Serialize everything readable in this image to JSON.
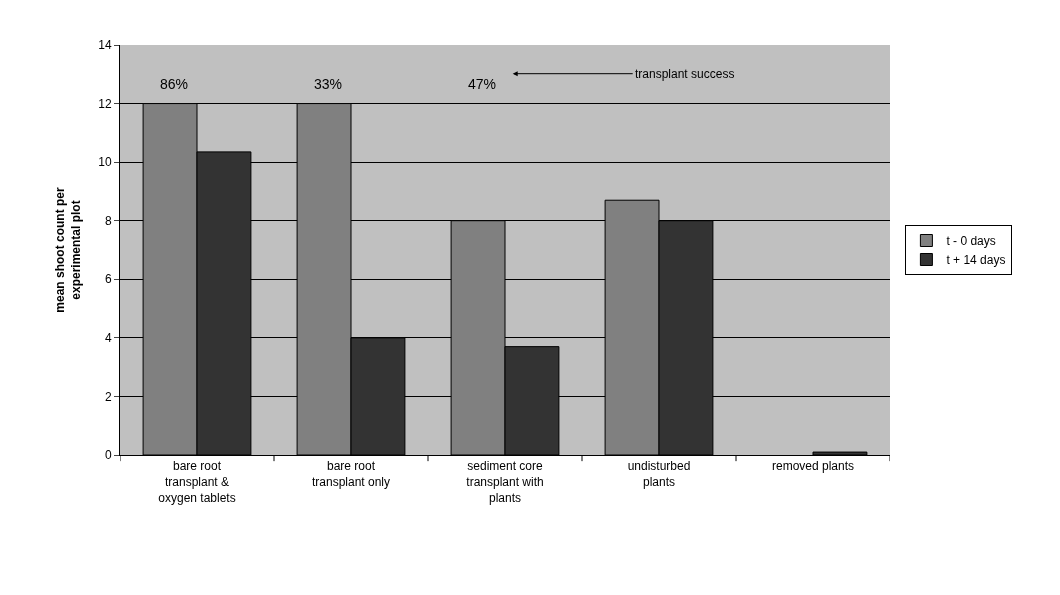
{
  "chart_data": {
    "type": "bar",
    "ylabel": "mean shoot count per experimental plot",
    "categories": [
      "bare root transplant & oxygen tablets",
      "bare root transplant only",
      "sediment core transplant with plants",
      "undisturbed plants",
      "removed plants"
    ],
    "series": [
      {
        "name": "t - 0 days",
        "color": "#808080",
        "values": [
          12,
          12,
          8,
          8.7,
          0
        ]
      },
      {
        "name": "t + 14 days",
        "color": "#333333",
        "values": [
          10.35,
          4,
          3.7,
          8,
          0.1
        ]
      }
    ],
    "annotations": [
      "86%",
      "33%",
      "47%",
      "transplant success"
    ],
    "ylim": [
      0,
      14
    ],
    "yticks": [
      0,
      2,
      4,
      6,
      8,
      10,
      12,
      14
    ],
    "grid": "y",
    "legend": "right"
  }
}
